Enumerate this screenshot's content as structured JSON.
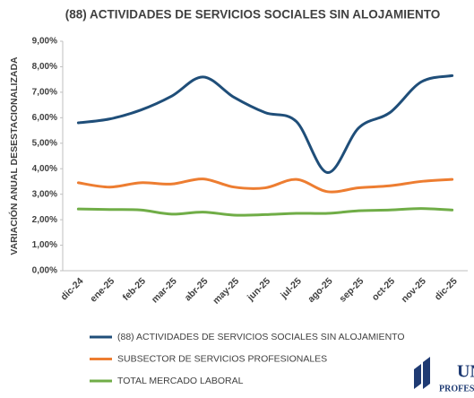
{
  "chart_data": {
    "type": "line",
    "title": "(88) ACTIVIDADES DE SERVICIOS SOCIALES SIN ALOJAMIENTO",
    "y_label": "VARIACIÓN ANUAL DESESTACIONALIZADA",
    "categories": [
      "dic-24",
      "ene-25",
      "feb-25",
      "mar-25",
      "abr-25",
      "may-25",
      "jun-25",
      "jul-25",
      "ago-25",
      "sep-25",
      "oct-25",
      "nov-25",
      "dic-25"
    ],
    "series": [
      {
        "name": "(88) ACTIVIDADES DE SERVICIOS SOCIALES SIN ALOJAMIENTO",
        "color": "#1f4e79",
        "values": [
          5.8,
          5.95,
          6.3,
          6.85,
          7.6,
          6.8,
          6.2,
          5.85,
          3.85,
          5.6,
          6.2,
          7.4,
          7.65
        ]
      },
      {
        "name": "SUBSECTOR DE SERVICIOS PROFESIONALES",
        "color": "#ed7d31",
        "values": [
          3.45,
          3.28,
          3.45,
          3.4,
          3.6,
          3.28,
          3.25,
          3.58,
          3.1,
          3.25,
          3.33,
          3.5,
          3.58
        ]
      },
      {
        "name": "TOTAL MERCADO LABORAL",
        "color": "#70ad47",
        "values": [
          2.42,
          2.4,
          2.38,
          2.22,
          2.3,
          2.18,
          2.2,
          2.25,
          2.25,
          2.35,
          2.38,
          2.44,
          2.38
        ]
      }
    ],
    "ylim": [
      0,
      9
    ],
    "yticks": [
      {
        "value": 0,
        "label": "0,00%"
      },
      {
        "value": 1,
        "label": "1,00%"
      },
      {
        "value": 2,
        "label": "2,00%"
      },
      {
        "value": 3,
        "label": "3,00%"
      },
      {
        "value": 4,
        "label": "4,00%"
      },
      {
        "value": 5,
        "label": "5,00%"
      },
      {
        "value": 6,
        "label": "6,00%"
      },
      {
        "value": 7,
        "label": "7,00%"
      },
      {
        "value": 8,
        "label": "8,00%"
      },
      {
        "value": 9,
        "label": "9,00%"
      }
    ],
    "grid": false,
    "legend": "bottom",
    "logo": {
      "line1": "UNIÓ",
      "line2": "PROFESIO"
    }
  }
}
